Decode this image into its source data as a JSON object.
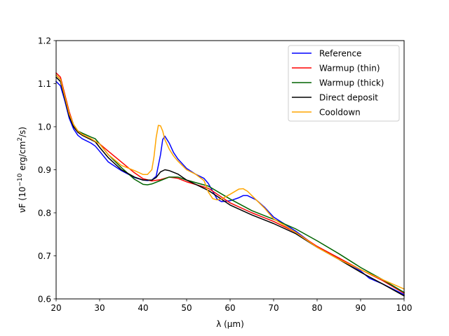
{
  "chart_data": {
    "type": "line",
    "xlabel": "λ (μm)",
    "ylabel": {
      "base": "νF (10",
      "sup1": "−10",
      "mid": " erg/cm",
      "sup2": "2",
      "end": "/s)"
    },
    "xlim": [
      20,
      100
    ],
    "ylim": [
      0.6,
      1.2
    ],
    "xticks": [
      20,
      30,
      40,
      50,
      60,
      70,
      80,
      90,
      100
    ],
    "yticks": [
      0.6,
      0.7,
      0.8,
      0.9,
      1.0,
      1.1,
      1.2
    ],
    "xtick_labels": [
      "20",
      "30",
      "40",
      "50",
      "60",
      "70",
      "80",
      "90",
      "100"
    ],
    "ytick_labels": [
      "0.6",
      "0.7",
      "0.8",
      "0.9",
      "1.0",
      "1.1",
      "1.2"
    ],
    "grid": false,
    "legend_position": "top-right",
    "series": [
      {
        "name": "Reference",
        "color": "#0000ff",
        "x": [
          20,
          21,
          22,
          23,
          24,
          25,
          26,
          28,
          29,
          30,
          32,
          35,
          38,
          40,
          41,
          42,
          43,
          44,
          44.5,
          45,
          46,
          47,
          48,
          50,
          52,
          54,
          55,
          56,
          57,
          58,
          60,
          62,
          63,
          64,
          66,
          68,
          70,
          75,
          80,
          85,
          90,
          92,
          95,
          100
        ],
        "y": [
          1.105,
          1.095,
          1.06,
          1.02,
          0.995,
          0.98,
          0.972,
          0.962,
          0.955,
          0.943,
          0.918,
          0.898,
          0.882,
          0.876,
          0.875,
          0.876,
          0.885,
          0.935,
          0.97,
          0.978,
          0.962,
          0.94,
          0.925,
          0.903,
          0.89,
          0.88,
          0.868,
          0.85,
          0.832,
          0.826,
          0.828,
          0.835,
          0.84,
          0.84,
          0.83,
          0.812,
          0.79,
          0.758,
          0.72,
          0.695,
          0.665,
          0.648,
          0.635,
          0.61
        ]
      },
      {
        "name": "Warmup (thin)",
        "color": "#ff0000",
        "x": [
          20,
          21,
          22,
          23,
          24,
          25,
          26,
          28,
          30,
          32,
          35,
          38,
          40,
          42,
          44,
          46,
          48,
          50,
          55,
          60,
          65,
          70,
          75,
          80,
          85,
          90,
          95,
          100
        ],
        "y": [
          1.125,
          1.115,
          1.075,
          1.035,
          1.005,
          0.99,
          0.982,
          0.972,
          0.96,
          0.943,
          0.918,
          0.893,
          0.879,
          0.874,
          0.877,
          0.883,
          0.88,
          0.872,
          0.857,
          0.823,
          0.8,
          0.78,
          0.755,
          0.722,
          0.695,
          0.668,
          0.643,
          0.613
        ]
      },
      {
        "name": "Warmup (thick)",
        "color": "#006400",
        "x": [
          20,
          21,
          22,
          23,
          24,
          25,
          26,
          28,
          29,
          30,
          32,
          35,
          38,
          40,
          41,
          42,
          44,
          46,
          48,
          50,
          55,
          60,
          65,
          70,
          75,
          80,
          85,
          90,
          95,
          100
        ],
        "y": [
          1.12,
          1.11,
          1.07,
          1.03,
          1.005,
          0.99,
          0.985,
          0.976,
          0.972,
          0.96,
          0.935,
          0.905,
          0.878,
          0.866,
          0.865,
          0.867,
          0.875,
          0.883,
          0.883,
          0.876,
          0.862,
          0.832,
          0.805,
          0.785,
          0.763,
          0.735,
          0.705,
          0.673,
          0.645,
          0.615
        ]
      },
      {
        "name": "Direct deposit",
        "color": "#000000",
        "x": [
          20,
          21,
          22,
          23,
          24,
          25,
          26,
          28,
          29,
          30,
          32,
          35,
          38,
          40,
          42,
          43,
          44,
          45,
          46,
          48,
          50,
          55,
          60,
          65,
          70,
          75,
          80,
          85,
          90,
          95,
          100
        ],
        "y": [
          1.115,
          1.105,
          1.065,
          1.025,
          1.0,
          0.987,
          0.98,
          0.97,
          0.965,
          0.952,
          0.928,
          0.9,
          0.883,
          0.876,
          0.876,
          0.882,
          0.895,
          0.9,
          0.898,
          0.89,
          0.876,
          0.852,
          0.818,
          0.795,
          0.775,
          0.752,
          0.72,
          0.692,
          0.662,
          0.635,
          0.607
        ]
      },
      {
        "name": "Cooldown",
        "color": "#ffa500",
        "x": [
          20,
          21,
          22,
          23,
          24,
          25,
          26,
          28,
          30,
          32,
          35,
          38,
          40,
          41,
          42,
          42.5,
          43,
          43.5,
          44,
          44.5,
          45,
          46,
          47,
          48,
          50,
          52,
          54,
          55,
          56,
          57,
          58,
          60,
          62,
          63,
          64,
          66,
          68,
          70,
          75,
          80,
          85,
          90,
          95,
          100
        ],
        "y": [
          1.12,
          1.11,
          1.07,
          1.03,
          1.005,
          0.99,
          0.982,
          0.972,
          0.96,
          0.935,
          0.91,
          0.898,
          0.889,
          0.889,
          0.9,
          0.93,
          0.975,
          1.003,
          1.002,
          0.99,
          0.97,
          0.948,
          0.932,
          0.92,
          0.9,
          0.89,
          0.875,
          0.848,
          0.833,
          0.83,
          0.832,
          0.843,
          0.855,
          0.856,
          0.85,
          0.83,
          0.81,
          0.786,
          0.755,
          0.72,
          0.692,
          0.668,
          0.645,
          0.623
        ]
      }
    ]
  }
}
